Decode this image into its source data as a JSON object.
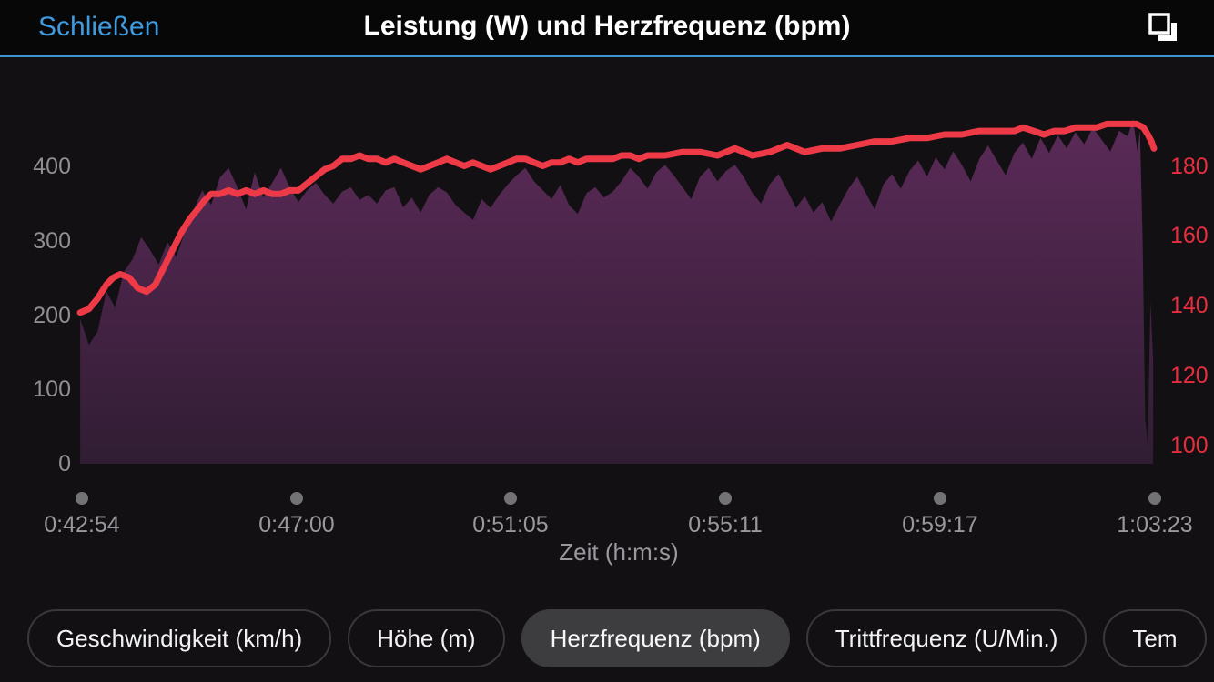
{
  "header": {
    "close_label": "Schließen",
    "title": "Leistung (W) und Herzfrequenz (bpm)"
  },
  "colors": {
    "bg": "#121013",
    "header_bg": "#070708",
    "header_line": "#3d92d0",
    "accent_blue": "#3f9be0",
    "axis_gray": "#8e8e93",
    "xlabel_gray": "#98989d",
    "dot_gray": "#737376",
    "hr_line": "#ee3a46",
    "hr_axis": "#e62e3e",
    "power_top": "#5c2b59",
    "power_mid": "#432243",
    "power_bottom": "#301d33",
    "pill_border": "#39393b",
    "pill_selected_bg": "#3d3d3f"
  },
  "chart_data": {
    "type": "area+line",
    "title": "Leistung (W) und Herzfrequenz (bpm)",
    "xlabel": "Zeit (h:m:s)",
    "x_axis": {
      "tick_labels": [
        "0:42:54",
        "0:47:00",
        "0:51:05",
        "0:55:11",
        "0:59:17",
        "1:03:23"
      ],
      "tick_seconds": [
        2574,
        2820,
        3065,
        3311,
        3557,
        3803
      ],
      "start_seconds": 2574,
      "end_seconds": 3803
    },
    "left_axis": {
      "name": "Leistung (W)",
      "ticks": [
        0,
        100,
        200,
        300,
        400
      ],
      "range": [
        0,
        490
      ]
    },
    "right_axis": {
      "name": "Herzfrequenz (bpm)",
      "ticks": [
        100,
        120,
        140,
        160,
        180
      ],
      "range": [
        95,
        200
      ]
    },
    "grid": false,
    "legend": "none",
    "series": [
      {
        "name": "Leistung",
        "unit": "W",
        "type": "area",
        "axis": "left",
        "points": [
          [
            2572,
            195
          ],
          [
            2582,
            160
          ],
          [
            2592,
            178
          ],
          [
            2602,
            232
          ],
          [
            2612,
            210
          ],
          [
            2622,
            258
          ],
          [
            2632,
            275
          ],
          [
            2642,
            305
          ],
          [
            2652,
            288
          ],
          [
            2662,
            268
          ],
          [
            2672,
            298
          ],
          [
            2682,
            278
          ],
          [
            2692,
            312
          ],
          [
            2702,
            342
          ],
          [
            2712,
            368
          ],
          [
            2722,
            348
          ],
          [
            2732,
            385
          ],
          [
            2742,
            398
          ],
          [
            2752,
            372
          ],
          [
            2762,
            342
          ],
          [
            2772,
            392
          ],
          [
            2782,
            358
          ],
          [
            2792,
            378
          ],
          [
            2802,
            398
          ],
          [
            2812,
            372
          ],
          [
            2822,
            352
          ],
          [
            2832,
            368
          ],
          [
            2842,
            378
          ],
          [
            2852,
            362
          ],
          [
            2862,
            350
          ],
          [
            2872,
            366
          ],
          [
            2882,
            372
          ],
          [
            2892,
            355
          ],
          [
            2902,
            362
          ],
          [
            2912,
            350
          ],
          [
            2922,
            368
          ],
          [
            2932,
            372
          ],
          [
            2942,
            345
          ],
          [
            2952,
            358
          ],
          [
            2962,
            338
          ],
          [
            2972,
            362
          ],
          [
            2982,
            372
          ],
          [
            2992,
            365
          ],
          [
            3002,
            348
          ],
          [
            3012,
            338
          ],
          [
            3022,
            328
          ],
          [
            3032,
            356
          ],
          [
            3042,
            344
          ],
          [
            3052,
            362
          ],
          [
            3062,
            376
          ],
          [
            3072,
            388
          ],
          [
            3082,
            398
          ],
          [
            3092,
            380
          ],
          [
            3102,
            368
          ],
          [
            3112,
            356
          ],
          [
            3122,
            375
          ],
          [
            3132,
            348
          ],
          [
            3142,
            336
          ],
          [
            3152,
            364
          ],
          [
            3162,
            372
          ],
          [
            3172,
            358
          ],
          [
            3182,
            366
          ],
          [
            3192,
            380
          ],
          [
            3202,
            398
          ],
          [
            3212,
            386
          ],
          [
            3222,
            370
          ],
          [
            3232,
            392
          ],
          [
            3242,
            402
          ],
          [
            3252,
            388
          ],
          [
            3262,
            372
          ],
          [
            3272,
            356
          ],
          [
            3282,
            386
          ],
          [
            3292,
            398
          ],
          [
            3302,
            380
          ],
          [
            3312,
            394
          ],
          [
            3322,
            402
          ],
          [
            3332,
            386
          ],
          [
            3342,
            364
          ],
          [
            3352,
            350
          ],
          [
            3362,
            376
          ],
          [
            3372,
            390
          ],
          [
            3382,
            368
          ],
          [
            3392,
            344
          ],
          [
            3402,
            360
          ],
          [
            3412,
            338
          ],
          [
            3422,
            352
          ],
          [
            3432,
            326
          ],
          [
            3442,
            348
          ],
          [
            3452,
            370
          ],
          [
            3462,
            386
          ],
          [
            3472,
            364
          ],
          [
            3482,
            342
          ],
          [
            3492,
            376
          ],
          [
            3502,
            390
          ],
          [
            3512,
            370
          ],
          [
            3522,
            394
          ],
          [
            3532,
            408
          ],
          [
            3542,
            386
          ],
          [
            3552,
            412
          ],
          [
            3562,
            396
          ],
          [
            3572,
            420
          ],
          [
            3582,
            402
          ],
          [
            3592,
            380
          ],
          [
            3602,
            410
          ],
          [
            3612,
            428
          ],
          [
            3622,
            408
          ],
          [
            3632,
            388
          ],
          [
            3642,
            418
          ],
          [
            3652,
            432
          ],
          [
            3662,
            410
          ],
          [
            3672,
            438
          ],
          [
            3682,
            418
          ],
          [
            3692,
            442
          ],
          [
            3702,
            424
          ],
          [
            3712,
            446
          ],
          [
            3722,
            430
          ],
          [
            3732,
            452
          ],
          [
            3742,
            436
          ],
          [
            3752,
            420
          ],
          [
            3762,
            448
          ],
          [
            3772,
            440
          ],
          [
            3778,
            464
          ],
          [
            3783,
            420
          ],
          [
            3786,
            448
          ],
          [
            3789,
            300
          ],
          [
            3792,
            60
          ],
          [
            3795,
            25
          ],
          [
            3798,
            218
          ],
          [
            3801,
            140
          ]
        ]
      },
      {
        "name": "Herzfrequenz",
        "unit": "bpm",
        "type": "line",
        "axis": "right",
        "points": [
          [
            2572,
            138
          ],
          [
            2582,
            139
          ],
          [
            2592,
            142
          ],
          [
            2602,
            146
          ],
          [
            2610,
            148
          ],
          [
            2618,
            149
          ],
          [
            2628,
            148
          ],
          [
            2638,
            145
          ],
          [
            2648,
            144
          ],
          [
            2658,
            146
          ],
          [
            2668,
            151
          ],
          [
            2678,
            156
          ],
          [
            2688,
            161
          ],
          [
            2698,
            165
          ],
          [
            2708,
            168
          ],
          [
            2714,
            170
          ],
          [
            2722,
            172
          ],
          [
            2732,
            172
          ],
          [
            2742,
            173
          ],
          [
            2752,
            172
          ],
          [
            2762,
            173
          ],
          [
            2772,
            172
          ],
          [
            2782,
            173
          ],
          [
            2792,
            172
          ],
          [
            2802,
            172
          ],
          [
            2812,
            173
          ],
          [
            2822,
            173
          ],
          [
            2832,
            175
          ],
          [
            2842,
            177
          ],
          [
            2852,
            179
          ],
          [
            2862,
            180
          ],
          [
            2872,
            182
          ],
          [
            2882,
            182
          ],
          [
            2892,
            183
          ],
          [
            2902,
            182
          ],
          [
            2912,
            182
          ],
          [
            2922,
            181
          ],
          [
            2932,
            182
          ],
          [
            2942,
            181
          ],
          [
            2952,
            180
          ],
          [
            2962,
            179
          ],
          [
            2972,
            180
          ],
          [
            2982,
            181
          ],
          [
            2992,
            182
          ],
          [
            3002,
            181
          ],
          [
            3012,
            180
          ],
          [
            3022,
            181
          ],
          [
            3032,
            180
          ],
          [
            3042,
            179
          ],
          [
            3052,
            180
          ],
          [
            3062,
            181
          ],
          [
            3072,
            182
          ],
          [
            3082,
            182
          ],
          [
            3092,
            181
          ],
          [
            3102,
            180
          ],
          [
            3112,
            181
          ],
          [
            3122,
            181
          ],
          [
            3132,
            182
          ],
          [
            3142,
            181
          ],
          [
            3152,
            182
          ],
          [
            3162,
            182
          ],
          [
            3172,
            182
          ],
          [
            3182,
            182
          ],
          [
            3192,
            183
          ],
          [
            3202,
            183
          ],
          [
            3212,
            182
          ],
          [
            3222,
            183
          ],
          [
            3242,
            183
          ],
          [
            3262,
            184
          ],
          [
            3282,
            184
          ],
          [
            3302,
            183
          ],
          [
            3322,
            185
          ],
          [
            3342,
            183
          ],
          [
            3362,
            184
          ],
          [
            3382,
            186
          ],
          [
            3402,
            184
          ],
          [
            3422,
            185
          ],
          [
            3442,
            185
          ],
          [
            3462,
            186
          ],
          [
            3482,
            187
          ],
          [
            3502,
            187
          ],
          [
            3522,
            188
          ],
          [
            3542,
            188
          ],
          [
            3562,
            189
          ],
          [
            3582,
            189
          ],
          [
            3602,
            190
          ],
          [
            3622,
            190
          ],
          [
            3642,
            190
          ],
          [
            3652,
            191
          ],
          [
            3664,
            190
          ],
          [
            3676,
            189
          ],
          [
            3688,
            190
          ],
          [
            3700,
            190
          ],
          [
            3712,
            191
          ],
          [
            3724,
            191
          ],
          [
            3736,
            191
          ],
          [
            3748,
            192
          ],
          [
            3760,
            192
          ],
          [
            3772,
            192
          ],
          [
            3782,
            192
          ],
          [
            3790,
            191
          ],
          [
            3795,
            189
          ],
          [
            3799,
            187
          ],
          [
            3802,
            185
          ]
        ]
      }
    ]
  },
  "tabs": [
    {
      "label": "Geschwindigkeit (km/h)",
      "selected": false
    },
    {
      "label": "Höhe (m)",
      "selected": false
    },
    {
      "label": "Herzfrequenz (bpm)",
      "selected": true
    },
    {
      "label": "Trittfrequenz (U/Min.)",
      "selected": false
    },
    {
      "label": "Tem",
      "selected": false
    }
  ]
}
